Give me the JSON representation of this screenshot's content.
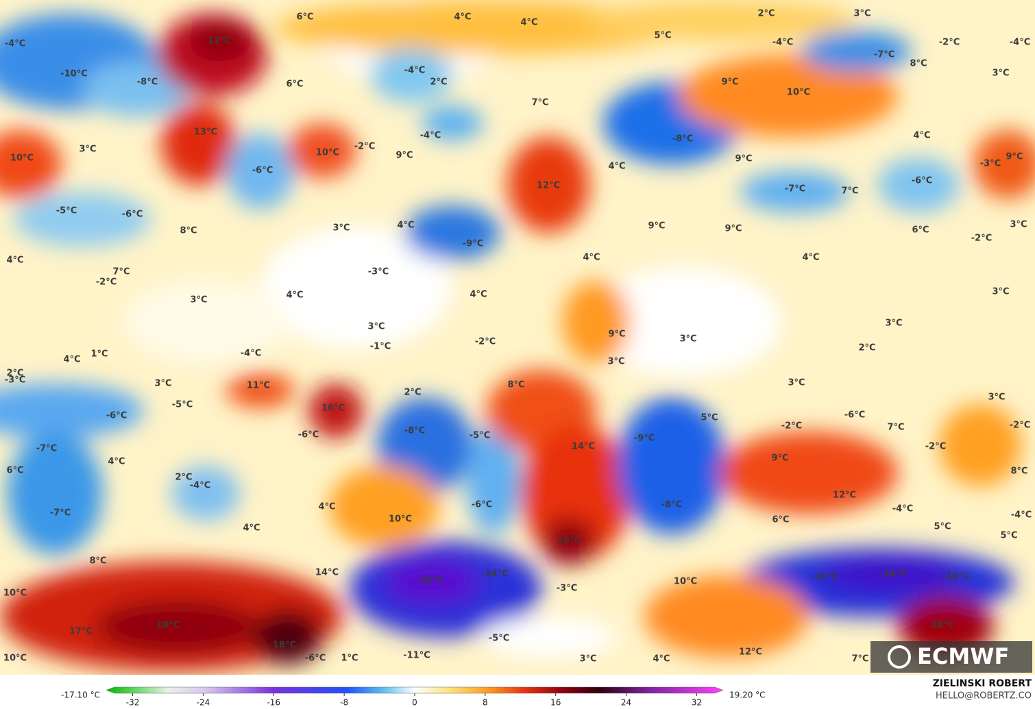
{
  "map": {
    "labels": [
      "6°C",
      "4°C",
      "4°C",
      "2°C",
      "3°C",
      "-4°C",
      "12°C",
      "5°C",
      "-4°C",
      "-2°C",
      "-4°C",
      "-10°C",
      "-8°C",
      "-4°C",
      "2°C",
      "6°C",
      "-7°C",
      "8°C",
      "3°C",
      "9°C",
      "10°C",
      "7°C",
      "13°C",
      "-4°C",
      "-8°C",
      "4°C",
      "10°C",
      "3°C",
      "-2°C",
      "10°C",
      "9°C",
      "-6°C",
      "4°C",
      "9°C",
      "-3°C",
      "9°C",
      "-6°C",
      "-7°C",
      "7°C",
      "12°C",
      "-5°C",
      "-6°C",
      "3°C",
      "4°C",
      "8°C",
      "9°C",
      "9°C",
      "6°C",
      "3°C",
      "-2°C",
      "-9°C",
      "4°C",
      "4°C",
      "4°C",
      "7°C",
      "-2°C",
      "-3°C",
      "3°C",
      "3°C",
      "4°C",
      "4°C",
      "3°C",
      "9°C",
      "3°C",
      "-2°C",
      "-1°C",
      "3°C",
      "2°C",
      "4°C",
      "1°C",
      "-4°C",
      "3°C",
      "2°C",
      "-3°C",
      "3°C",
      "11°C",
      "8°C",
      "3°C",
      "2°C",
      "-5°C",
      "-6°C",
      "16°C",
      "-8°C",
      "-5°C",
      "5°C",
      "-6°C",
      "3°C",
      "-2°C",
      "7°C",
      "-2°C",
      "-6°C",
      "-9°C",
      "-2°C",
      "-7°C",
      "14°C",
      "4°C",
      "9°C",
      "6°C",
      "2°C",
      "-4°C",
      "8°C",
      "-7°C",
      "4°C",
      "-6°C",
      "-8°C",
      "12°C",
      "10°C",
      "6°C",
      "-4°C",
      "-4°C",
      "4°C",
      "5°C",
      "5°C",
      "16°C",
      "8°C",
      "14°C",
      "-16°C",
      "-14°C",
      "-16°C",
      "-14°C",
      "-16°C",
      "10°C",
      "-3°C",
      "10°C",
      "17°C",
      "18°C",
      "18°C",
      "18°C",
      "-5°C",
      "12°C",
      "10°C",
      "-6°C",
      "1°C",
      "-11°C",
      "3°C",
      "4°C",
      "7°C"
    ]
  },
  "colorbar": {
    "min_label": "-17.10 °C",
    "max_label": "19.20 °C",
    "lim": [
      -35,
      35
    ],
    "ticks": [
      -32,
      -24,
      -16,
      -8,
      0,
      8,
      16,
      24,
      32
    ]
  },
  "credit": {
    "author": "ZIELINSKI ROBERT",
    "contact": "HELLO@ROBERTZ.CO"
  },
  "logo": "ECMWF"
}
